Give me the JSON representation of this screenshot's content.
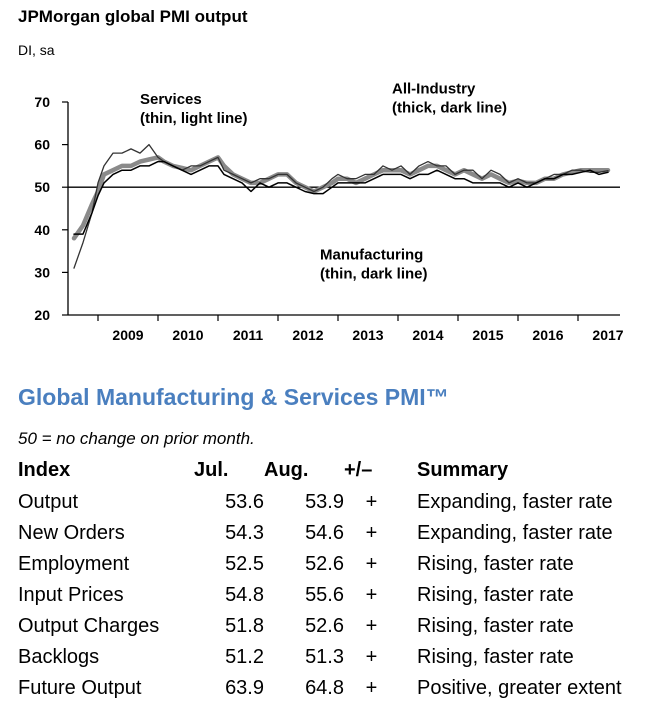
{
  "chart_data": {
    "type": "line",
    "title": "JPMorgan global PMI output",
    "ylabel": "DI, sa",
    "ylim": [
      20,
      70
    ],
    "yticks": [
      20,
      30,
      40,
      50,
      60,
      70
    ],
    "xlim": [
      2008.5,
      2017.7
    ],
    "xtick_labels": [
      "2009",
      "2010",
      "2011",
      "2012",
      "2013",
      "2014",
      "2015",
      "2016",
      "2017"
    ],
    "reference_line": 50,
    "annotations": [
      {
        "text": [
          "Services",
          "(thin, light line)"
        ],
        "x": 2009.7,
        "y": 69.5
      },
      {
        "text": [
          "All-Industry",
          "(thick, dark line)"
        ],
        "x": 2013.9,
        "y": 72
      },
      {
        "text": [
          "Manufacturing",
          "(thin, dark line)"
        ],
        "x": 2012.7,
        "y": 33
      }
    ],
    "series": [
      {
        "style": "all-industry-thick-gray",
        "color": "#8a8a8a",
        "points": [
          [
            2008.6,
            38
          ],
          [
            2008.75,
            41
          ],
          [
            2008.9,
            46
          ],
          [
            2009.0,
            49
          ],
          [
            2009.1,
            53
          ],
          [
            2009.25,
            54
          ],
          [
            2009.4,
            55
          ],
          [
            2009.55,
            55
          ],
          [
            2009.7,
            56
          ],
          [
            2009.85,
            56.5
          ],
          [
            2010.0,
            57
          ],
          [
            2010.1,
            56
          ],
          [
            2010.25,
            55
          ],
          [
            2010.4,
            54.5
          ],
          [
            2010.55,
            54
          ],
          [
            2010.7,
            55
          ],
          [
            2010.85,
            56
          ],
          [
            2011.0,
            57
          ],
          [
            2011.1,
            55
          ],
          [
            2011.25,
            53
          ],
          [
            2011.4,
            52
          ],
          [
            2011.55,
            51
          ],
          [
            2011.7,
            51
          ],
          [
            2011.85,
            52
          ],
          [
            2012.0,
            53
          ],
          [
            2012.15,
            53
          ],
          [
            2012.3,
            51
          ],
          [
            2012.45,
            50
          ],
          [
            2012.6,
            49
          ],
          [
            2012.75,
            50
          ],
          [
            2012.9,
            51
          ],
          [
            2013.0,
            52
          ],
          [
            2013.15,
            52
          ],
          [
            2013.3,
            51
          ],
          [
            2013.45,
            52
          ],
          [
            2013.6,
            53
          ],
          [
            2013.75,
            54
          ],
          [
            2013.9,
            54
          ],
          [
            2014.05,
            54
          ],
          [
            2014.2,
            53
          ],
          [
            2014.35,
            54
          ],
          [
            2014.5,
            55
          ],
          [
            2014.65,
            55
          ],
          [
            2014.8,
            54
          ],
          [
            2014.95,
            53
          ],
          [
            2015.1,
            54
          ],
          [
            2015.25,
            53
          ],
          [
            2015.4,
            52
          ],
          [
            2015.55,
            53
          ],
          [
            2015.7,
            52
          ],
          [
            2015.85,
            51
          ],
          [
            2016.0,
            51.5
          ],
          [
            2016.15,
            51
          ],
          [
            2016.3,
            51
          ],
          [
            2016.45,
            52
          ],
          [
            2016.6,
            52
          ],
          [
            2016.75,
            53
          ],
          [
            2016.9,
            53.5
          ],
          [
            2017.05,
            54
          ],
          [
            2017.2,
            54
          ],
          [
            2017.35,
            54
          ],
          [
            2017.5,
            54
          ]
        ]
      },
      {
        "style": "services-thin-light",
        "color": "#333333",
        "points": [
          [
            2008.6,
            31
          ],
          [
            2008.75,
            37
          ],
          [
            2008.9,
            44
          ],
          [
            2009.0,
            51
          ],
          [
            2009.1,
            55
          ],
          [
            2009.25,
            58
          ],
          [
            2009.4,
            58
          ],
          [
            2009.55,
            59
          ],
          [
            2009.7,
            58
          ],
          [
            2009.85,
            60
          ],
          [
            2010.0,
            57
          ],
          [
            2010.1,
            56
          ],
          [
            2010.25,
            55
          ],
          [
            2010.4,
            54
          ],
          [
            2010.55,
            55
          ],
          [
            2010.7,
            55
          ],
          [
            2010.85,
            56
          ],
          [
            2011.0,
            57
          ],
          [
            2011.1,
            54
          ],
          [
            2011.25,
            53
          ],
          [
            2011.4,
            52
          ],
          [
            2011.55,
            51
          ],
          [
            2011.7,
            52
          ],
          [
            2011.85,
            52
          ],
          [
            2012.0,
            53
          ],
          [
            2012.15,
            53
          ],
          [
            2012.3,
            51
          ],
          [
            2012.45,
            50
          ],
          [
            2012.6,
            49
          ],
          [
            2012.75,
            50
          ],
          [
            2012.9,
            52
          ],
          [
            2013.0,
            53
          ],
          [
            2013.15,
            52
          ],
          [
            2013.3,
            52
          ],
          [
            2013.45,
            53
          ],
          [
            2013.6,
            53
          ],
          [
            2013.75,
            55
          ],
          [
            2013.9,
            54
          ],
          [
            2014.05,
            55
          ],
          [
            2014.2,
            53
          ],
          [
            2014.35,
            55
          ],
          [
            2014.5,
            56
          ],
          [
            2014.65,
            55
          ],
          [
            2014.8,
            55
          ],
          [
            2014.95,
            53
          ],
          [
            2015.1,
            54
          ],
          [
            2015.25,
            54
          ],
          [
            2015.4,
            52
          ],
          [
            2015.55,
            54
          ],
          [
            2015.7,
            53
          ],
          [
            2015.85,
            51
          ],
          [
            2016.0,
            52
          ],
          [
            2016.15,
            51
          ],
          [
            2016.3,
            51
          ],
          [
            2016.45,
            52
          ],
          [
            2016.6,
            53
          ],
          [
            2016.75,
            53
          ],
          [
            2016.9,
            54
          ],
          [
            2017.05,
            54
          ],
          [
            2017.2,
            53.5
          ],
          [
            2017.35,
            53.5
          ],
          [
            2017.5,
            53.9
          ]
        ]
      },
      {
        "style": "manufacturing-thin-dark",
        "color": "#000000",
        "points": [
          [
            2008.6,
            39
          ],
          [
            2008.75,
            39
          ],
          [
            2008.9,
            44
          ],
          [
            2009.0,
            48
          ],
          [
            2009.1,
            51
          ],
          [
            2009.25,
            53
          ],
          [
            2009.4,
            54
          ],
          [
            2009.55,
            54
          ],
          [
            2009.7,
            55
          ],
          [
            2009.85,
            55
          ],
          [
            2010.0,
            56
          ],
          [
            2010.1,
            56
          ],
          [
            2010.25,
            55
          ],
          [
            2010.4,
            54
          ],
          [
            2010.55,
            53
          ],
          [
            2010.7,
            54
          ],
          [
            2010.85,
            55
          ],
          [
            2011.0,
            55
          ],
          [
            2011.1,
            53
          ],
          [
            2011.25,
            52
          ],
          [
            2011.4,
            51
          ],
          [
            2011.55,
            49
          ],
          [
            2011.7,
            51
          ],
          [
            2011.85,
            50
          ],
          [
            2012.0,
            51
          ],
          [
            2012.15,
            51
          ],
          [
            2012.3,
            50
          ],
          [
            2012.45,
            49
          ],
          [
            2012.6,
            48.5
          ],
          [
            2012.75,
            48.5
          ],
          [
            2012.9,
            50
          ],
          [
            2013.0,
            51
          ],
          [
            2013.15,
            51
          ],
          [
            2013.3,
            51
          ],
          [
            2013.45,
            51
          ],
          [
            2013.6,
            52
          ],
          [
            2013.75,
            53
          ],
          [
            2013.9,
            53
          ],
          [
            2014.05,
            53
          ],
          [
            2014.2,
            52
          ],
          [
            2014.35,
            53
          ],
          [
            2014.5,
            53
          ],
          [
            2014.65,
            54
          ],
          [
            2014.8,
            53
          ],
          [
            2014.95,
            52
          ],
          [
            2015.1,
            52
          ],
          [
            2015.25,
            51
          ],
          [
            2015.4,
            51
          ],
          [
            2015.55,
            51
          ],
          [
            2015.7,
            51
          ],
          [
            2015.85,
            50
          ],
          [
            2016.0,
            51
          ],
          [
            2016.15,
            50
          ],
          [
            2016.3,
            51
          ],
          [
            2016.45,
            52
          ],
          [
            2016.6,
            52
          ],
          [
            2016.75,
            53
          ],
          [
            2016.9,
            53
          ],
          [
            2017.05,
            53.5
          ],
          [
            2017.2,
            54
          ],
          [
            2017.35,
            53
          ],
          [
            2017.5,
            53.5
          ]
        ]
      }
    ]
  },
  "section": {
    "title": "Global Manufacturing & Services PMI™",
    "note": "50 = no change on prior month."
  },
  "table": {
    "headers": [
      "Index",
      "Jul.",
      "Aug.",
      "+/–",
      "Summary"
    ],
    "rows": [
      [
        "Output",
        "53.6",
        "53.9",
        "+",
        "Expanding, faster rate"
      ],
      [
        "New Orders",
        "54.3",
        "54.6",
        "+",
        "Expanding, faster rate"
      ],
      [
        "Employment",
        "52.5",
        "52.6",
        "+",
        "Rising, faster rate"
      ],
      [
        "Input Prices",
        "54.8",
        "55.6",
        "+",
        "Rising, faster rate"
      ],
      [
        "Output Charges",
        "51.8",
        "52.6",
        "+",
        "Rising, faster rate"
      ],
      [
        "Backlogs",
        "51.2",
        "51.3",
        "+",
        "Rising, faster rate"
      ],
      [
        "Future Output",
        "63.9",
        "64.8",
        "+",
        "Positive, greater extent"
      ]
    ]
  }
}
